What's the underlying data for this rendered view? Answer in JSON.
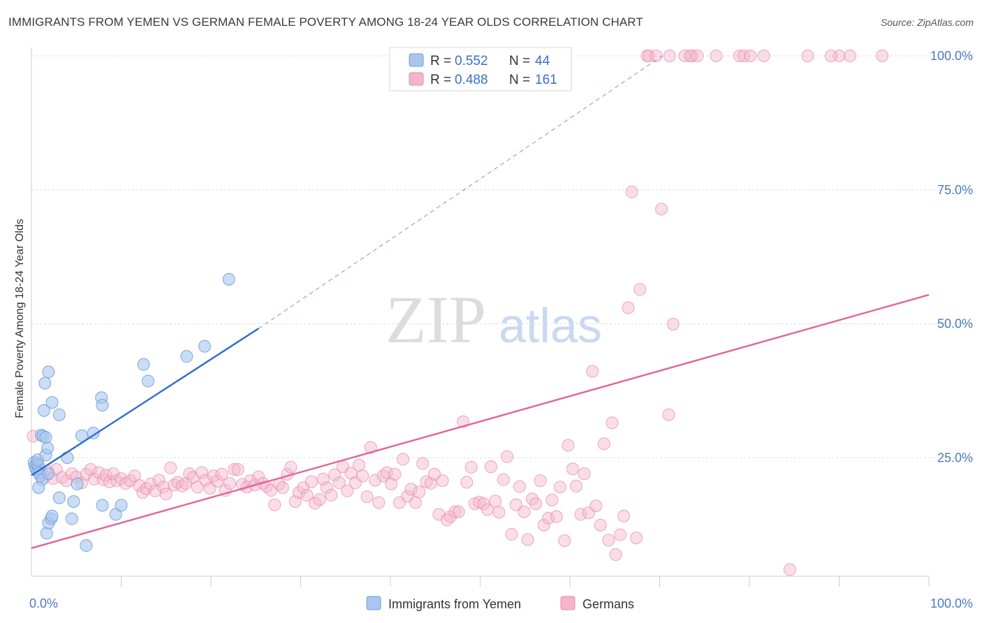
{
  "title": "IMMIGRANTS FROM YEMEN VS GERMAN FEMALE POVERTY AMONG 18-24 YEAR OLDS CORRELATION CHART",
  "source": "Source: ZipAtlas.com",
  "watermark": {
    "zip": "ZIP",
    "atlas": "atlas"
  },
  "colors": {
    "blue_fill": "#a9c6ee",
    "blue_stroke": "#6f9fdc",
    "blue_line": "#2e6fce",
    "pink_fill": "#f4b5c9",
    "pink_stroke": "#e88aa9",
    "pink_line": "#e0699a",
    "tick_text": "#4a79c4",
    "grid": "#dddddd"
  },
  "legend": {
    "rows": [
      {
        "r_label": "R = ",
        "r_value": "0.552",
        "n_label": "N = ",
        "n_value": "44"
      },
      {
        "r_label": "R = ",
        "r_value": "0.488",
        "n_label": "N = ",
        "n_value": "161"
      }
    ]
  },
  "bottom_legend": {
    "series1": "Immigrants from Yemen",
    "series2": "Germans"
  },
  "chart_data": {
    "type": "scatter",
    "xlabel": "",
    "ylabel": "Female Poverty Among 18-24 Year Olds",
    "xlim": [
      0,
      100
    ],
    "ylim": [
      0,
      102
    ],
    "x_tick_labels": [
      {
        "value": 0,
        "label": "0.0%"
      },
      {
        "value": 100,
        "label": "100.0%"
      }
    ],
    "y_tick_labels": [
      {
        "value": 25,
        "label": "25.0%"
      },
      {
        "value": 50,
        "label": "50.0%"
      },
      {
        "value": 75,
        "label": "75.0%"
      },
      {
        "value": 100,
        "label": "100.0%"
      }
    ],
    "legend_position": "top-center",
    "grid": true,
    "series": [
      {
        "name": "Immigrants from Yemen",
        "r": 0.552,
        "n": 44,
        "trend": {
          "x1": 0,
          "y1": 21.7,
          "x2": 25.3,
          "y2": 49.1,
          "dashed_to": [
            70.3,
            100
          ]
        },
        "points": [
          [
            0.3,
            24.1
          ],
          [
            0.4,
            23.4
          ],
          [
            0.5,
            22.9
          ],
          [
            0.6,
            23.8
          ],
          [
            0.7,
            22.4
          ],
          [
            0.8,
            23.5
          ],
          [
            0.9,
            22.1
          ],
          [
            0.7,
            24.6
          ],
          [
            1.0,
            21.6
          ],
          [
            1.2,
            20.9
          ],
          [
            0.8,
            19.4
          ],
          [
            1.1,
            29.2
          ],
          [
            1.3,
            29.0
          ],
          [
            1.6,
            25.5
          ],
          [
            1.8,
            26.8
          ],
          [
            1.9,
            22.0
          ],
          [
            1.4,
            33.8
          ],
          [
            1.5,
            38.9
          ],
          [
            1.9,
            41.0
          ],
          [
            2.3,
            35.3
          ],
          [
            3.1,
            33.0
          ],
          [
            1.6,
            28.8
          ],
          [
            1.7,
            10.9
          ],
          [
            1.9,
            12.8
          ],
          [
            2.2,
            13.6
          ],
          [
            2.3,
            14.1
          ],
          [
            3.1,
            17.5
          ],
          [
            4.0,
            25.0
          ],
          [
            4.5,
            13.6
          ],
          [
            4.7,
            16.8
          ],
          [
            5.1,
            20.1
          ],
          [
            5.6,
            29.1
          ],
          [
            6.1,
            8.6
          ],
          [
            6.9,
            29.6
          ],
          [
            7.8,
            36.2
          ],
          [
            7.9,
            34.8
          ],
          [
            7.9,
            16.1
          ],
          [
            9.4,
            14.4
          ],
          [
            10.0,
            16.1
          ],
          [
            12.5,
            42.4
          ],
          [
            13.0,
            39.3
          ],
          [
            17.3,
            43.9
          ],
          [
            19.3,
            45.8
          ],
          [
            22.0,
            58.3
          ]
        ]
      },
      {
        "name": "Germans",
        "r": 0.488,
        "n": 161,
        "trend": {
          "x1": 0,
          "y1": 8.1,
          "x2": 100,
          "y2": 55.4
        },
        "points": [
          [
            0.2,
            29.0
          ],
          [
            0.6,
            24.0
          ],
          [
            0.9,
            22.9
          ],
          [
            1.2,
            22.1
          ],
          [
            1.5,
            21.4
          ],
          [
            1.8,
            22.5
          ],
          [
            2.4,
            21.1
          ],
          [
            2.8,
            22.8
          ],
          [
            3.4,
            21.3
          ],
          [
            3.9,
            20.7
          ],
          [
            4.5,
            22.0
          ],
          [
            5.0,
            21.4
          ],
          [
            5.6,
            20.3
          ],
          [
            6.1,
            21.9
          ],
          [
            6.6,
            22.8
          ],
          [
            7.0,
            21.0
          ],
          [
            7.5,
            22.2
          ],
          [
            8.0,
            20.9
          ],
          [
            8.3,
            21.7
          ],
          [
            8.7,
            20.5
          ],
          [
            9.1,
            22.0
          ],
          [
            9.5,
            20.7
          ],
          [
            10.0,
            21.1
          ],
          [
            10.5,
            20.2
          ],
          [
            11.0,
            20.7
          ],
          [
            11.5,
            21.6
          ],
          [
            12.0,
            19.8
          ],
          [
            12.4,
            18.5
          ],
          [
            12.8,
            19.2
          ],
          [
            13.3,
            20.1
          ],
          [
            13.8,
            18.8
          ],
          [
            14.2,
            20.8
          ],
          [
            14.7,
            19.5
          ],
          [
            15.0,
            18.2
          ],
          [
            15.5,
            23.1
          ],
          [
            15.9,
            19.9
          ],
          [
            16.3,
            20.4
          ],
          [
            16.8,
            19.7
          ],
          [
            17.2,
            20.2
          ],
          [
            17.6,
            22.0
          ],
          [
            18.0,
            21.3
          ],
          [
            18.5,
            19.5
          ],
          [
            19.0,
            22.2
          ],
          [
            19.4,
            20.8
          ],
          [
            19.9,
            19.3
          ],
          [
            20.3,
            21.6
          ],
          [
            20.7,
            20.6
          ],
          [
            21.2,
            21.9
          ],
          [
            21.6,
            18.9
          ],
          [
            22.1,
            20.2
          ],
          [
            22.6,
            22.8
          ],
          [
            23.0,
            22.8
          ],
          [
            23.5,
            20.0
          ],
          [
            24.0,
            19.5
          ],
          [
            24.4,
            20.7
          ],
          [
            24.9,
            19.9
          ],
          [
            25.3,
            21.4
          ],
          [
            25.8,
            20.2
          ],
          [
            26.2,
            19.6
          ],
          [
            26.7,
            18.9
          ],
          [
            27.1,
            16.2
          ],
          [
            27.6,
            20.1
          ],
          [
            28.0,
            19.4
          ],
          [
            28.5,
            21.9
          ],
          [
            28.9,
            23.2
          ],
          [
            29.4,
            16.8
          ],
          [
            29.8,
            18.5
          ],
          [
            30.3,
            19.4
          ],
          [
            30.7,
            18.0
          ],
          [
            31.2,
            20.5
          ],
          [
            31.6,
            16.5
          ],
          [
            32.1,
            17.2
          ],
          [
            32.5,
            21.0
          ],
          [
            32.9,
            19.4
          ],
          [
            33.4,
            18.0
          ],
          [
            33.8,
            21.8
          ],
          [
            34.3,
            20.3
          ],
          [
            34.7,
            23.3
          ],
          [
            35.2,
            18.8
          ],
          [
            35.6,
            22.1
          ],
          [
            36.1,
            20.3
          ],
          [
            36.5,
            23.6
          ],
          [
            36.9,
            21.6
          ],
          [
            37.4,
            17.7
          ],
          [
            37.8,
            26.9
          ],
          [
            38.3,
            20.8
          ],
          [
            38.7,
            16.6
          ],
          [
            39.2,
            21.6
          ],
          [
            39.6,
            22.2
          ],
          [
            40.1,
            20.1
          ],
          [
            40.5,
            21.9
          ],
          [
            41.0,
            16.6
          ],
          [
            41.4,
            24.7
          ],
          [
            41.9,
            17.8
          ],
          [
            42.3,
            19.1
          ],
          [
            42.8,
            16.6
          ],
          [
            43.2,
            18.6
          ],
          [
            43.6,
            23.9
          ],
          [
            44.0,
            20.5
          ],
          [
            44.5,
            20.2
          ],
          [
            44.9,
            21.9
          ],
          [
            45.4,
            14.4
          ],
          [
            45.8,
            20.7
          ],
          [
            46.3,
            13.4
          ],
          [
            46.7,
            14.0
          ],
          [
            47.2,
            14.9
          ],
          [
            47.6,
            14.9
          ],
          [
            48.1,
            31.7
          ],
          [
            48.5,
            20.4
          ],
          [
            49.0,
            23.2
          ],
          [
            49.4,
            16.4
          ],
          [
            49.9,
            16.7
          ],
          [
            50.4,
            16.4
          ],
          [
            50.8,
            15.3
          ],
          [
            51.2,
            23.3
          ],
          [
            51.7,
            16.9
          ],
          [
            52.1,
            14.8
          ],
          [
            52.6,
            20.9
          ],
          [
            53.0,
            25.2
          ],
          [
            53.5,
            10.7
          ],
          [
            54.0,
            16.2
          ],
          [
            54.4,
            19.6
          ],
          [
            54.9,
            14.9
          ],
          [
            55.3,
            9.7
          ],
          [
            55.8,
            17.3
          ],
          [
            56.2,
            16.4
          ],
          [
            56.7,
            20.7
          ],
          [
            57.1,
            12.4
          ],
          [
            57.6,
            13.7
          ],
          [
            58.0,
            17.1
          ],
          [
            58.5,
            14.0
          ],
          [
            58.9,
            19.5
          ],
          [
            59.4,
            9.5
          ],
          [
            59.8,
            27.3
          ],
          [
            60.3,
            22.9
          ],
          [
            60.7,
            19.7
          ],
          [
            61.2,
            14.4
          ],
          [
            61.6,
            22.0
          ],
          [
            62.1,
            14.7
          ],
          [
            62.5,
            41.1
          ],
          [
            62.9,
            16.0
          ],
          [
            63.4,
            12.4
          ],
          [
            63.8,
            27.6
          ],
          [
            64.3,
            9.6
          ],
          [
            64.7,
            31.5
          ],
          [
            65.1,
            6.9
          ],
          [
            65.6,
            10.6
          ],
          [
            66.0,
            14.1
          ],
          [
            66.5,
            53.0
          ],
          [
            66.9,
            74.6
          ],
          [
            67.4,
            10.0
          ],
          [
            67.8,
            56.4
          ],
          [
            70.2,
            71.4
          ],
          [
            71.0,
            33.0
          ],
          [
            71.5,
            49.9
          ],
          [
            84.5,
            4.1
          ],
          [
            68.6,
            100.0
          ],
          [
            71.1,
            100.0
          ],
          [
            73.6,
            100.0
          ],
          [
            68.8,
            100.0
          ],
          [
            72.8,
            100.0
          ],
          [
            73.4,
            100.0
          ],
          [
            69.6,
            100.0
          ],
          [
            74.2,
            100.0
          ],
          [
            76.3,
            100.0
          ],
          [
            78.9,
            100.0
          ],
          [
            79.4,
            100.0
          ],
          [
            80.1,
            100.0
          ],
          [
            81.6,
            100.0
          ],
          [
            86.5,
            100.0
          ],
          [
            90.0,
            100.0
          ],
          [
            94.8,
            100.0
          ],
          [
            89.1,
            100.0
          ],
          [
            91.2,
            100.0
          ]
        ]
      }
    ]
  }
}
